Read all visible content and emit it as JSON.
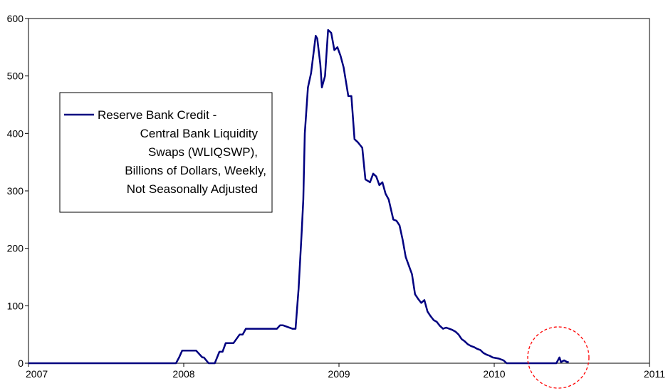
{
  "chart_data": {
    "type": "line",
    "x_unit": "year",
    "xlim": [
      2007,
      2011
    ],
    "ylim": [
      0,
      600
    ],
    "x_ticks": [
      2007,
      2008,
      2009,
      2010,
      2011
    ],
    "x_tick_labels": [
      "2007",
      "2008",
      "2009",
      "2010",
      "2011"
    ],
    "y_ticks": [
      0,
      100,
      200,
      300,
      400,
      500,
      600
    ],
    "y_tick_labels": [
      "0",
      "100",
      "200",
      "300",
      "400",
      "500",
      "600"
    ],
    "grid": false,
    "legend_placement": "upper-left",
    "colors": {
      "series": "#000080",
      "annotation_circle": "#ff0000"
    },
    "series": [
      {
        "name": "Reserve Bank Credit - Central Bank Liquidity Swaps (WLIQSWP), Billions of Dollars, Weekly, Not Seasonally Adjusted",
        "name_lines": [
          "Reserve Bank Credit -",
          "Central Bank Liquidity",
          "Swaps (WLIQSWP),",
          "Billions of Dollars, Weekly,",
          "Not Seasonally Adjusted"
        ],
        "x": [
          2007.0,
          2007.95,
          2007.97,
          2007.99,
          2008.02,
          2008.08,
          2008.12,
          2008.13,
          2008.16,
          2008.17,
          2008.2,
          2008.23,
          2008.25,
          2008.27,
          2008.3,
          2008.32,
          2008.36,
          2008.38,
          2008.4,
          2008.43,
          2008.45,
          2008.48,
          2008.52,
          2008.56,
          2008.6,
          2008.62,
          2008.64,
          2008.7,
          2008.71,
          2008.72,
          2008.74,
          2008.76,
          2008.77,
          2008.78,
          2008.8,
          2008.82,
          2008.85,
          2008.86,
          2008.88,
          2008.89,
          2008.91,
          2008.93,
          2008.95,
          2008.97,
          2008.99,
          2009.01,
          2009.03,
          2009.06,
          2009.08,
          2009.1,
          2009.12,
          2009.15,
          2009.17,
          2009.2,
          2009.22,
          2009.24,
          2009.26,
          2009.28,
          2009.3,
          2009.32,
          2009.35,
          2009.37,
          2009.39,
          2009.41,
          2009.43,
          2009.45,
          2009.47,
          2009.49,
          2009.51,
          2009.53,
          2009.55,
          2009.57,
          2009.59,
          2009.61,
          2009.63,
          2009.65,
          2009.67,
          2009.69,
          2009.71,
          2009.73,
          2009.75,
          2009.77,
          2009.79,
          2009.81,
          2009.83,
          2009.85,
          2009.87,
          2009.89,
          2009.91,
          2009.93,
          2009.95,
          2009.97,
          2009.99,
          2010.03,
          2010.06,
          2010.08,
          2010.1,
          2010.4,
          2010.42,
          2010.43,
          2010.45,
          2010.47,
          2010.48
        ],
        "y": [
          0,
          0,
          10,
          22,
          22,
          22,
          10,
          10,
          0,
          0,
          0,
          20,
          20,
          35,
          35,
          35,
          50,
          50,
          60,
          60,
          60,
          60,
          60,
          60,
          60,
          66,
          66,
          60,
          60,
          60,
          130,
          230,
          285,
          400,
          480,
          505,
          570,
          565,
          520,
          480,
          500,
          580,
          575,
          545,
          550,
          535,
          515,
          465,
          465,
          390,
          385,
          375,
          320,
          315,
          330,
          325,
          310,
          315,
          295,
          285,
          250,
          248,
          240,
          215,
          185,
          170,
          155,
          120,
          112,
          105,
          110,
          90,
          82,
          75,
          72,
          65,
          60,
          62,
          60,
          58,
          55,
          50,
          42,
          38,
          33,
          30,
          28,
          25,
          23,
          18,
          15,
          13,
          10,
          8,
          5,
          0,
          0,
          0,
          10,
          2,
          5,
          2,
          2
        ]
      }
    ]
  }
}
